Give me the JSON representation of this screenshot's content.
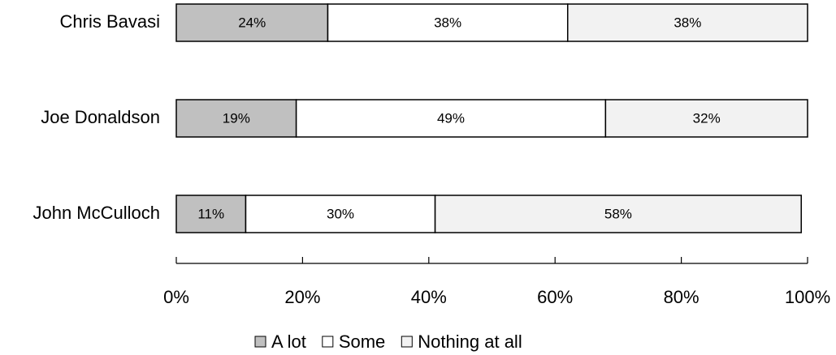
{
  "chart_data": {
    "type": "bar",
    "orientation": "horizontal",
    "stacked": true,
    "categories": [
      "Chris Bavasi",
      "Joe Donaldson",
      "John McCulloch"
    ],
    "series": [
      {
        "name": "A lot",
        "values": [
          24,
          19,
          11
        ],
        "labels": [
          "24%",
          "19%",
          "11%"
        ],
        "color": "#c0c0c0"
      },
      {
        "name": "Some",
        "values": [
          38,
          49,
          30
        ],
        "labels": [
          "38%",
          "49%",
          "30%"
        ],
        "color": "#ffffff"
      },
      {
        "name": "Nothing at all",
        "values": [
          38,
          32,
          58
        ],
        "labels": [
          "38%",
          "32%",
          "58%"
        ],
        "color": "#f2f2f2"
      }
    ],
    "xlim": [
      0,
      100
    ],
    "xticks": [
      0,
      20,
      40,
      60,
      80,
      100
    ],
    "xtick_labels": [
      "0%",
      "20%",
      "40%",
      "60%",
      "80%",
      "100%"
    ],
    "grid": false,
    "legend_position": "bottom",
    "border_color": "#000000"
  }
}
